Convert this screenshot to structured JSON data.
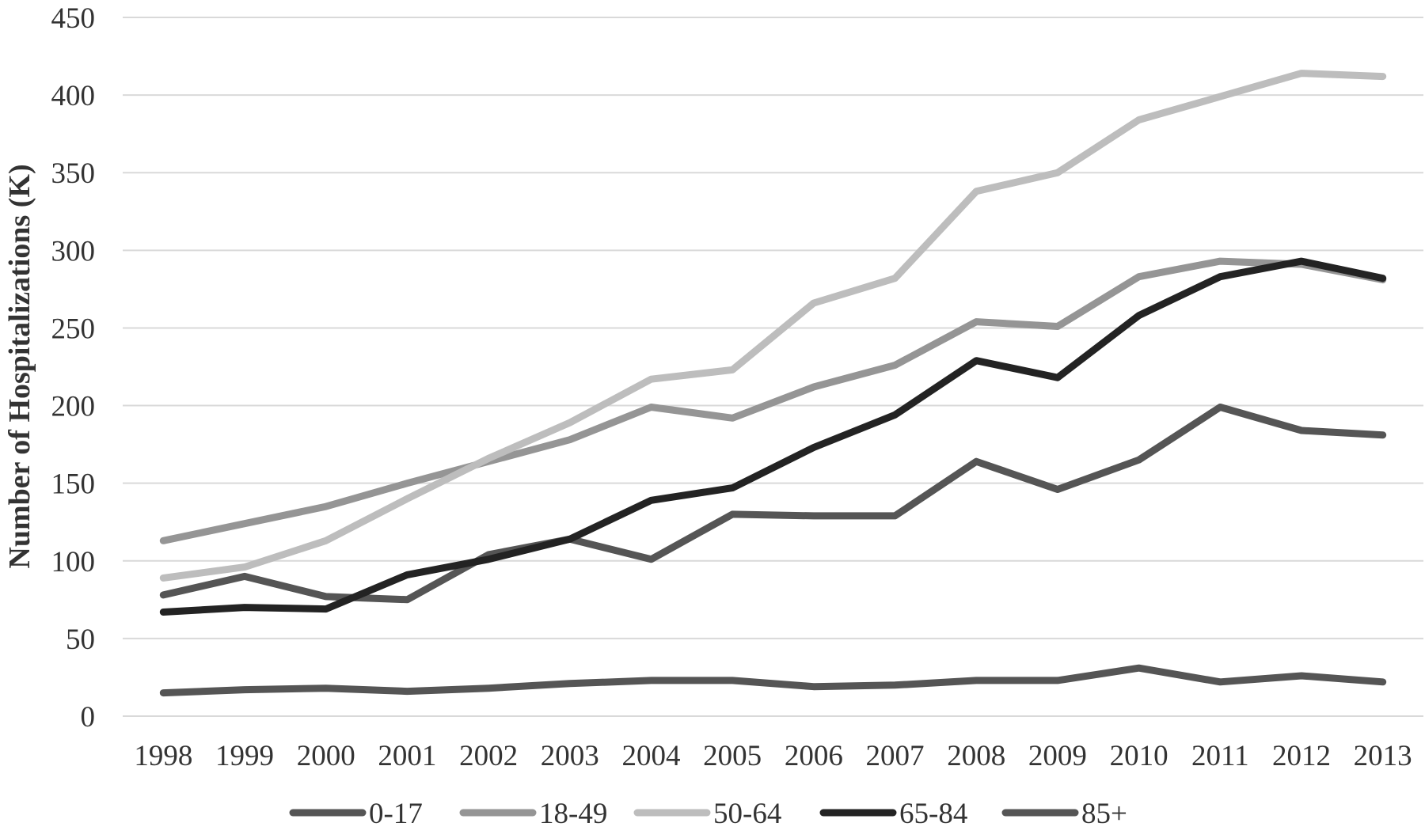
{
  "chart_data": {
    "type": "line",
    "title": "",
    "xlabel": "",
    "ylabel": "Number of Hospitalizations (K)",
    "ylim": [
      0,
      450
    ],
    "yticks": [
      0,
      50,
      100,
      150,
      200,
      250,
      300,
      350,
      400,
      450
    ],
    "grid": true,
    "legend_position": "bottom",
    "categories": [
      "1998",
      "1999",
      "2000",
      "2001",
      "2002",
      "2003",
      "2004",
      "2005",
      "2006",
      "2007",
      "2008",
      "2009",
      "2010",
      "2011",
      "2012",
      "2013"
    ],
    "series": [
      {
        "name": "0-17",
        "color": "#555555",
        "values": [
          78,
          90,
          77,
          75,
          104,
          114,
          101,
          130,
          129,
          129,
          164,
          146,
          165,
          199,
          184,
          181
        ]
      },
      {
        "name": "18-49",
        "color": "#959595",
        "values": [
          113,
          124,
          135,
          150,
          164,
          178,
          199,
          192,
          212,
          226,
          254,
          251,
          283,
          293,
          291,
          281
        ]
      },
      {
        "name": "50-64",
        "color": "#bdbdbd",
        "values": [
          89,
          96,
          113,
          140,
          166,
          189,
          217,
          223,
          266,
          282,
          338,
          350,
          384,
          399,
          414,
          412
        ]
      },
      {
        "name": "65-84",
        "color": "#232323",
        "values": [
          67,
          70,
          69,
          91,
          101,
          114,
          139,
          147,
          173,
          194,
          229,
          218,
          258,
          283,
          293,
          282
        ]
      },
      {
        "name": "85+",
        "color": "#555555",
        "values": [
          15,
          17,
          18,
          16,
          18,
          21,
          23,
          23,
          19,
          20,
          23,
          23,
          31,
          22,
          26,
          22
        ]
      }
    ]
  }
}
